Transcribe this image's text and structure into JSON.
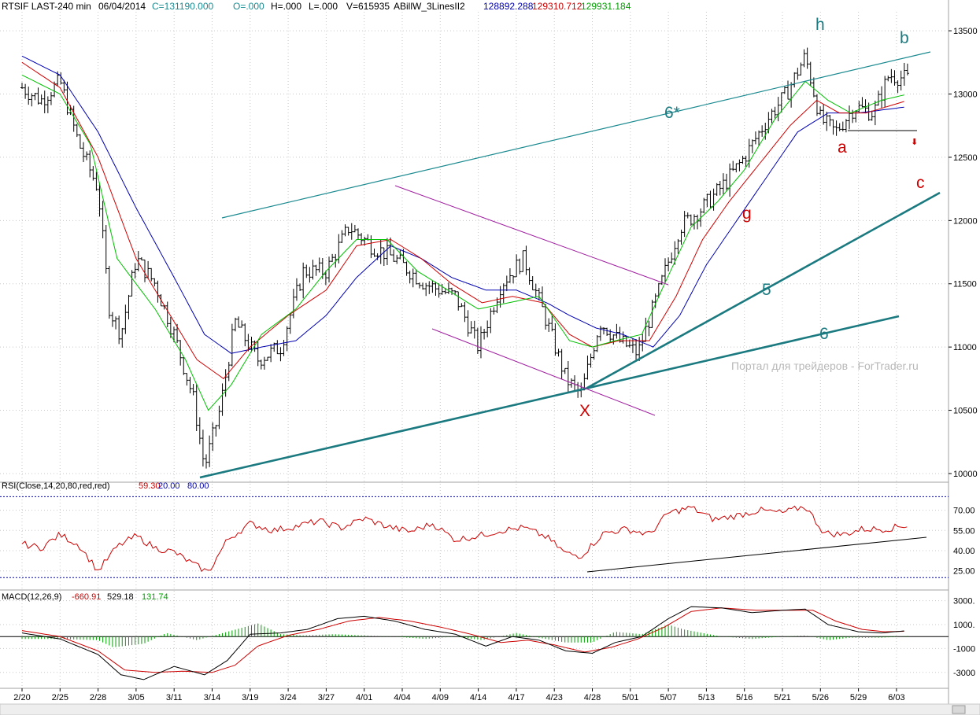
{
  "header": {
    "symbol": "RTSIF LAST-240 min",
    "date": "06/04/2014",
    "close": "C=131190.000",
    "open": "O=.000",
    "high": "H=.000",
    "low": "L=.000",
    "volume": "V=615935",
    "indicator": "ABillW_3LinesII2",
    "ind_v1": "128892.288",
    "ind_v2": "129310.712",
    "ind_v3": "129931.184"
  },
  "watermark": "Портал для трейдеров - ForTrader.ru",
  "colors": {
    "price_bar": "#000000",
    "ma_fast": "#00c000",
    "ma_mid": "#d00000",
    "ma_slow": "#0000b0",
    "trendline": "#1a7a80",
    "channel": "#a020a0",
    "wave_teal": "#1a7a80",
    "wave_red": "#cc0000",
    "rsi_line": "#cc0000",
    "macd_line": "#000000",
    "macd_signal": "#cc0000",
    "macd_hist": "#00a000",
    "grid": "#c8c8c8",
    "rsi_band": "#0000a0"
  },
  "chart_data": [
    {
      "type": "line",
      "name": "price",
      "xlabels": [
        "2/20",
        "2/25",
        "2/28",
        "3/05",
        "3/11",
        "3/14",
        "3/19",
        "3/24",
        "3/27",
        "4/01",
        "4/04",
        "4/09",
        "4/14",
        "4/17",
        "4/23",
        "4/28",
        "5/01",
        "5/07",
        "5/13",
        "5/16",
        "5/21",
        "5/26",
        "5/29",
        "6/03"
      ],
      "ylabels": [
        "13500",
        "13000",
        "12500",
        "12000",
        "11500",
        "11000",
        "10500",
        "10000"
      ],
      "ylim": [
        9950,
        13650
      ],
      "grid": true,
      "close_points": [
        [
          0,
          13050
        ],
        [
          0.5,
          12950
        ],
        [
          1,
          13100
        ],
        [
          1.5,
          12600
        ],
        [
          2,
          12250
        ],
        [
          2.3,
          11300
        ],
        [
          2.6,
          11100
        ],
        [
          3,
          11700
        ],
        [
          3.5,
          11500
        ],
        [
          4,
          11100
        ],
        [
          4.5,
          10600
        ],
        [
          4.8,
          10050
        ],
        [
          5.2,
          10500
        ],
        [
          5.6,
          11200
        ],
        [
          6.2,
          10900
        ],
        [
          6.8,
          11000
        ],
        [
          7.4,
          11600
        ],
        [
          8,
          11600
        ],
        [
          8.6,
          11950
        ],
        [
          9.2,
          11800
        ],
        [
          9.8,
          11700
        ],
        [
          10.6,
          11500
        ],
        [
          11.4,
          11400
        ],
        [
          12,
          11000
        ],
        [
          12.6,
          11500
        ],
        [
          13.2,
          11700
        ],
        [
          13.8,
          11200
        ],
        [
          14.3,
          10750
        ],
        [
          14.7,
          10620
        ],
        [
          15.2,
          11200
        ],
        [
          15.7,
          11050
        ],
        [
          16.2,
          10950
        ],
        [
          16.7,
          11400
        ],
        [
          17.3,
          11950
        ],
        [
          17.9,
          12100
        ],
        [
          18.5,
          12300
        ],
        [
          19,
          12500
        ],
        [
          19.6,
          12800
        ],
        [
          20.1,
          13000
        ],
        [
          20.6,
          13300
        ],
        [
          21,
          12800
        ],
        [
          21.4,
          12700
        ],
        [
          21.9,
          12900
        ],
        [
          22.4,
          12850
        ],
        [
          22.8,
          13150
        ],
        [
          23.3,
          13120
        ]
      ],
      "ma_fast_points": [
        [
          0,
          13150
        ],
        [
          1,
          13000
        ],
        [
          1.8,
          12600
        ],
        [
          2.5,
          11700
        ],
        [
          3.5,
          11300
        ],
        [
          4.3,
          10900
        ],
        [
          4.9,
          10500
        ],
        [
          5.5,
          10700
        ],
        [
          6.3,
          11100
        ],
        [
          7.2,
          11300
        ],
        [
          8,
          11600
        ],
        [
          8.8,
          11850
        ],
        [
          9.6,
          11850
        ],
        [
          10.4,
          11600
        ],
        [
          11.2,
          11450
        ],
        [
          12,
          11300
        ],
        [
          12.8,
          11350
        ],
        [
          13.6,
          11400
        ],
        [
          14.4,
          11050
        ],
        [
          15,
          11000
        ],
        [
          15.6,
          11050
        ],
        [
          16.3,
          11100
        ],
        [
          16.9,
          11500
        ],
        [
          17.6,
          11950
        ],
        [
          18.3,
          12150
        ],
        [
          19,
          12400
        ],
        [
          19.8,
          12800
        ],
        [
          20.6,
          13100
        ],
        [
          21.2,
          12950
        ],
        [
          21.8,
          12850
        ],
        [
          22.6,
          12950
        ],
        [
          23.3,
          13000
        ]
      ],
      "ma_mid_points": [
        [
          0,
          13250
        ],
        [
          1,
          13050
        ],
        [
          2,
          12500
        ],
        [
          3,
          11700
        ],
        [
          3.8,
          11300
        ],
        [
          4.6,
          10900
        ],
        [
          5.3,
          10750
        ],
        [
          6,
          11000
        ],
        [
          7,
          11250
        ],
        [
          8,
          11450
        ],
        [
          8.8,
          11800
        ],
        [
          9.7,
          11850
        ],
        [
          10.5,
          11700
        ],
        [
          11.3,
          11500
        ],
        [
          12.1,
          11350
        ],
        [
          12.9,
          11400
        ],
        [
          13.7,
          11350
        ],
        [
          14.4,
          11100
        ],
        [
          15,
          11000
        ],
        [
          15.7,
          11050
        ],
        [
          16.5,
          11050
        ],
        [
          17.2,
          11400
        ],
        [
          17.9,
          11850
        ],
        [
          18.6,
          12150
        ],
        [
          19.4,
          12450
        ],
        [
          20.2,
          12750
        ],
        [
          20.9,
          12950
        ],
        [
          21.5,
          12850
        ],
        [
          22.2,
          12850
        ],
        [
          23.3,
          12950
        ]
      ],
      "ma_slow_points": [
        [
          0,
          13300
        ],
        [
          1,
          13150
        ],
        [
          2,
          12700
        ],
        [
          3,
          12100
        ],
        [
          4,
          11550
        ],
        [
          4.8,
          11100
        ],
        [
          5.5,
          10950
        ],
        [
          6.3,
          11000
        ],
        [
          7.2,
          11050
        ],
        [
          8,
          11250
        ],
        [
          8.8,
          11550
        ],
        [
          9.7,
          11800
        ],
        [
          10.5,
          11700
        ],
        [
          11.3,
          11550
        ],
        [
          12.2,
          11450
        ],
        [
          13,
          11450
        ],
        [
          13.8,
          11350
        ],
        [
          14.4,
          11250
        ],
        [
          15.1,
          11150
        ],
        [
          15.8,
          11100
        ],
        [
          16.6,
          11000
        ],
        [
          17.3,
          11250
        ],
        [
          18,
          11650
        ],
        [
          18.8,
          12000
        ],
        [
          19.6,
          12350
        ],
        [
          20.4,
          12700
        ],
        [
          21.2,
          12850
        ],
        [
          22,
          12850
        ],
        [
          23.3,
          12900
        ]
      ]
    },
    {
      "type": "line",
      "name": "RSI(Close,14,20,80,red,red)",
      "values_label": [
        "59.30",
        "20.00",
        "80.00"
      ],
      "ylabels": [
        "70.00",
        "55.00",
        "40.00",
        "25.00"
      ],
      "ylim": [
        12,
        82
      ],
      "bands": [
        20,
        80
      ],
      "points": [
        [
          0,
          45
        ],
        [
          0.5,
          42
        ],
        [
          1,
          52
        ],
        [
          1.5,
          44
        ],
        [
          2,
          25
        ],
        [
          2.5,
          43
        ],
        [
          3,
          51
        ],
        [
          3.5,
          42
        ],
        [
          4,
          39
        ],
        [
          4.5,
          30
        ],
        [
          4.9,
          24
        ],
        [
          5.4,
          48
        ],
        [
          6,
          60
        ],
        [
          6.6,
          55
        ],
        [
          7.2,
          58
        ],
        [
          7.8,
          62
        ],
        [
          8.4,
          57
        ],
        [
          9,
          64
        ],
        [
          9.6,
          58
        ],
        [
          10.2,
          54
        ],
        [
          10.8,
          60
        ],
        [
          11.4,
          48
        ],
        [
          12,
          51
        ],
        [
          12.6,
          55
        ],
        [
          13.2,
          57
        ],
        [
          13.8,
          50
        ],
        [
          14.3,
          38
        ],
        [
          14.7,
          36
        ],
        [
          15.3,
          53
        ],
        [
          15.9,
          56
        ],
        [
          16.5,
          52
        ],
        [
          17,
          68
        ],
        [
          17.6,
          72
        ],
        [
          18.2,
          63
        ],
        [
          18.8,
          66
        ],
        [
          19.4,
          70
        ],
        [
          20,
          68
        ],
        [
          20.6,
          73
        ],
        [
          21.1,
          53
        ],
        [
          21.6,
          52
        ],
        [
          22.1,
          56
        ],
        [
          22.7,
          56
        ],
        [
          23.3,
          59
        ]
      ]
    },
    {
      "type": "line",
      "name": "MACD(12,26,9)",
      "values_label": [
        "-660.91",
        "529.18",
        "131.74"
      ],
      "ylabels": [
        "3000.",
        "1000.",
        "-1000",
        "-3000"
      ],
      "ylim": [
        -4200,
        3700
      ],
      "macd_points": [
        [
          0,
          300
        ],
        [
          1,
          -200
        ],
        [
          2,
          -1500
        ],
        [
          2.6,
          -3200
        ],
        [
          3.2,
          -3600
        ],
        [
          4,
          -2500
        ],
        [
          4.8,
          -3200
        ],
        [
          5.4,
          -2000
        ],
        [
          6,
          200
        ],
        [
          6.8,
          300
        ],
        [
          7.5,
          600
        ],
        [
          8.3,
          1500
        ],
        [
          9,
          1700
        ],
        [
          9.8,
          1300
        ],
        [
          10.6,
          600
        ],
        [
          11.4,
          200
        ],
        [
          12.2,
          -800
        ],
        [
          12.9,
          0
        ],
        [
          13.6,
          -300
        ],
        [
          14.3,
          -1200
        ],
        [
          15,
          -1400
        ],
        [
          15.6,
          -500
        ],
        [
          16.3,
          0
        ],
        [
          17,
          1500
        ],
        [
          17.6,
          2500
        ],
        [
          18.4,
          2400
        ],
        [
          19.2,
          2000
        ],
        [
          20,
          2200
        ],
        [
          20.6,
          2300
        ],
        [
          21.2,
          1000
        ],
        [
          22,
          400
        ],
        [
          22.6,
          300
        ],
        [
          23.3,
          500
        ]
      ],
      "signal_points": [
        [
          0,
          500
        ],
        [
          1,
          0
        ],
        [
          2,
          -1200
        ],
        [
          2.7,
          -2800
        ],
        [
          3.5,
          -3000
        ],
        [
          4.2,
          -2900
        ],
        [
          5,
          -3000
        ],
        [
          5.6,
          -2400
        ],
        [
          6.2,
          -800
        ],
        [
          7,
          100
        ],
        [
          7.8,
          600
        ],
        [
          8.6,
          1300
        ],
        [
          9.4,
          1600
        ],
        [
          10.2,
          1300
        ],
        [
          11,
          800
        ],
        [
          11.8,
          200
        ],
        [
          12.6,
          -500
        ],
        [
          13.3,
          -300
        ],
        [
          14,
          -700
        ],
        [
          14.8,
          -1300
        ],
        [
          15.5,
          -900
        ],
        [
          16.2,
          -200
        ],
        [
          16.9,
          800
        ],
        [
          17.6,
          2100
        ],
        [
          18.4,
          2400
        ],
        [
          19.3,
          2200
        ],
        [
          20.1,
          2200
        ],
        [
          20.8,
          2200
        ],
        [
          21.4,
          1300
        ],
        [
          22.1,
          600
        ],
        [
          22.7,
          400
        ],
        [
          23.3,
          450
        ]
      ],
      "hist_points": [
        [
          0,
          -200
        ],
        [
          1,
          -200
        ],
        [
          2,
          -300
        ],
        [
          2.4,
          -900
        ],
        [
          3.2,
          -600
        ],
        [
          3.8,
          300
        ],
        [
          4.6,
          -300
        ],
        [
          5.4,
          400
        ],
        [
          6.2,
          1100
        ],
        [
          6.8,
          200
        ],
        [
          7.4,
          100
        ],
        [
          8.2,
          200
        ],
        [
          9,
          100
        ],
        [
          9.8,
          0
        ],
        [
          10.6,
          -200
        ],
        [
          11.4,
          0
        ],
        [
          12.1,
          -300
        ],
        [
          13,
          300
        ],
        [
          13.6,
          -100
        ],
        [
          14.3,
          -500
        ],
        [
          15,
          -500
        ],
        [
          15.6,
          400
        ],
        [
          16.3,
          200
        ],
        [
          17,
          1000
        ],
        [
          17.4,
          600
        ],
        [
          18.4,
          0
        ],
        [
          19.2,
          -200
        ],
        [
          20,
          0
        ],
        [
          20.6,
          100
        ],
        [
          21.2,
          -300
        ],
        [
          21.8,
          -100
        ],
        [
          22.6,
          -100
        ],
        [
          23.3,
          50
        ]
      ]
    }
  ],
  "annotations": {
    "wave_h": "h",
    "wave_b": "b",
    "wave_a": "a",
    "wave_c": "c",
    "wave_g": "g",
    "wave_x": "X",
    "line_6star": "6*",
    "line_5": "5",
    "line_6": "6"
  }
}
